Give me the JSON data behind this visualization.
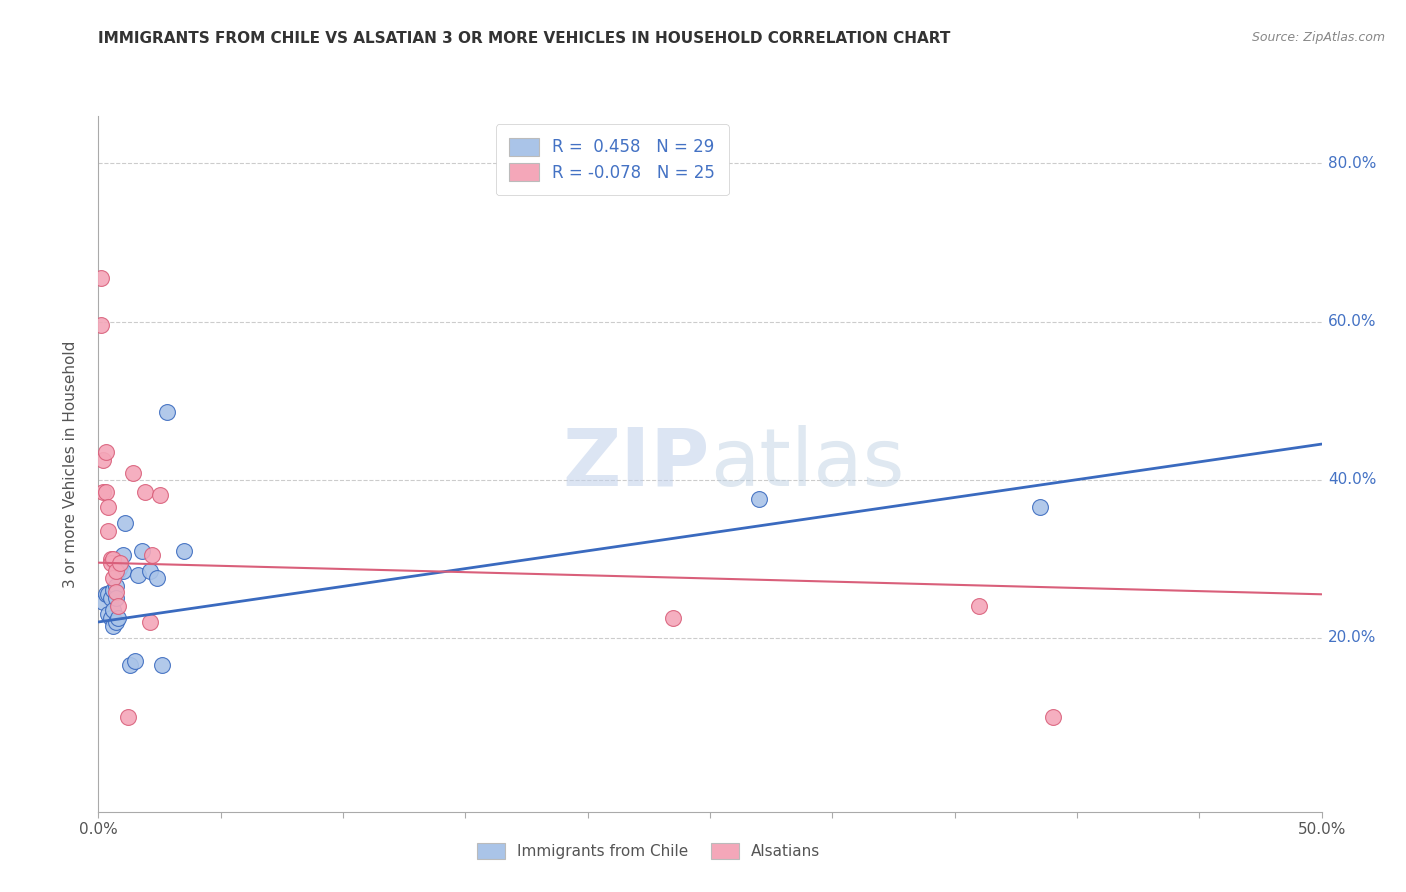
{
  "title": "IMMIGRANTS FROM CHILE VS ALSATIAN 3 OR MORE VEHICLES IN HOUSEHOLD CORRELATION CHART",
  "source": "Source: ZipAtlas.com",
  "ylabel": "3 or more Vehicles in Household",
  "xlabel_legend1": "Immigrants from Chile",
  "xlabel_legend2": "Alsatians",
  "r1": 0.458,
  "n1": 29,
  "r2": -0.078,
  "n2": 25,
  "xlim": [
    0.0,
    0.5
  ],
  "ylim": [
    -0.02,
    0.86
  ],
  "color_blue": "#aac4e8",
  "color_pink": "#f4a7b9",
  "line_blue": "#3a6abf",
  "line_pink": "#d95f7a",
  "background": "#ffffff",
  "grid_color": "#cccccc",
  "blue_scatter_x": [
    0.002,
    0.003,
    0.004,
    0.004,
    0.005,
    0.005,
    0.006,
    0.006,
    0.006,
    0.007,
    0.007,
    0.007,
    0.008,
    0.008,
    0.009,
    0.01,
    0.01,
    0.011,
    0.013,
    0.015,
    0.016,
    0.018,
    0.021,
    0.024,
    0.026,
    0.028,
    0.035,
    0.27,
    0.385
  ],
  "blue_scatter_y": [
    0.245,
    0.255,
    0.255,
    0.23,
    0.25,
    0.225,
    0.26,
    0.235,
    0.215,
    0.265,
    0.25,
    0.22,
    0.285,
    0.225,
    0.29,
    0.285,
    0.305,
    0.345,
    0.165,
    0.17,
    0.28,
    0.31,
    0.285,
    0.275,
    0.165,
    0.485,
    0.31,
    0.375,
    0.365
  ],
  "pink_scatter_x": [
    0.001,
    0.001,
    0.002,
    0.002,
    0.003,
    0.003,
    0.004,
    0.004,
    0.005,
    0.005,
    0.006,
    0.006,
    0.007,
    0.007,
    0.008,
    0.009,
    0.012,
    0.014,
    0.019,
    0.021,
    0.022,
    0.025,
    0.235,
    0.36,
    0.39
  ],
  "pink_scatter_y": [
    0.595,
    0.655,
    0.385,
    0.425,
    0.385,
    0.435,
    0.365,
    0.335,
    0.3,
    0.295,
    0.275,
    0.3,
    0.258,
    0.285,
    0.24,
    0.295,
    0.1,
    0.408,
    0.385,
    0.22,
    0.305,
    0.38,
    0.225,
    0.24,
    0.1
  ],
  "blue_line_x": [
    0.0,
    0.5
  ],
  "blue_line_y": [
    0.22,
    0.445
  ],
  "pink_line_x": [
    0.0,
    0.5
  ],
  "pink_line_y": [
    0.295,
    0.255
  ],
  "watermark_zip": "ZIP",
  "watermark_atlas": "atlas",
  "watermark_color": "#ccd9f0"
}
